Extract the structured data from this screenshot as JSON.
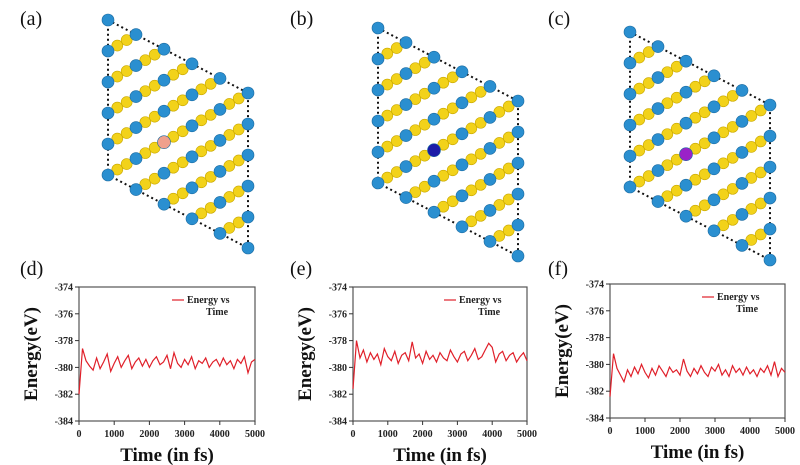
{
  "panel_labels": [
    "(a)",
    "(b)",
    "(c)",
    "(d)",
    "(e)",
    "(f)"
  ],
  "structures": [
    {
      "label": "(a)",
      "dopant_color": "#f0a08c"
    },
    {
      "label": "(b)",
      "dopant_color": "#1c1ca8"
    },
    {
      "label": "(c)",
      "dopant_color": "#9a22c8"
    }
  ],
  "colors": {
    "metal": "#2a8fd0",
    "sulfur": "#f2d21a",
    "line": "#e0202a"
  },
  "chart_data": [
    {
      "type": "line",
      "label": "(d)",
      "xlabel": "Time (in fs)",
      "ylabel": "Energy(eV)",
      "xlim": [
        0,
        5000
      ],
      "ylim": [
        -384,
        -374
      ],
      "xticks": [
        "0",
        "1000",
        "2000",
        "3000",
        "4000",
        "5000"
      ],
      "yticks": [
        "-374",
        "-376",
        "-378",
        "-380",
        "-382",
        "-384"
      ],
      "legend": [
        "Energy vs",
        "Time"
      ],
      "legend_position": "top-right",
      "series": [
        {
          "name": "Energy vs Time",
          "values": [
            -382.0,
            -378.6,
            -379.5,
            -379.9,
            -380.2,
            -379.3,
            -380.1,
            -379.6,
            -379.0,
            -380.3,
            -379.7,
            -379.2,
            -380.0,
            -379.5,
            -379.1,
            -380.1,
            -379.6,
            -379.3,
            -379.9,
            -379.4,
            -380.0,
            -379.5,
            -379.2,
            -379.8,
            -379.6,
            -379.1,
            -380.1,
            -378.9,
            -379.7,
            -380.0,
            -379.4,
            -379.8,
            -379.2,
            -380.1,
            -379.5,
            -379.7,
            -379.3,
            -380.0,
            -379.6,
            -379.4,
            -379.9,
            -379.3,
            -379.8,
            -379.5,
            -380.1,
            -379.4,
            -379.7,
            -379.2,
            -380.4,
            -379.6,
            -379.4
          ]
        }
      ]
    },
    {
      "type": "line",
      "label": "(e)",
      "xlabel": "Time (in fs)",
      "ylabel": "Energy(eV)",
      "xlim": [
        0,
        5000
      ],
      "ylim": [
        -384,
        -374
      ],
      "xticks": [
        "0",
        "1000",
        "2000",
        "3000",
        "4000",
        "5000"
      ],
      "yticks": [
        "-374",
        "-376",
        "-378",
        "-380",
        "-382",
        "-384"
      ],
      "legend": [
        "Energy vs",
        "Time"
      ],
      "legend_position": "top-right",
      "series": [
        {
          "name": "Energy vs Time",
          "values": [
            -381.6,
            -378.0,
            -379.3,
            -378.7,
            -379.6,
            -378.9,
            -379.4,
            -379.0,
            -379.8,
            -378.6,
            -379.2,
            -379.5,
            -378.8,
            -379.7,
            -379.1,
            -378.9,
            -379.5,
            -378.1,
            -379.3,
            -379.0,
            -379.7,
            -378.8,
            -379.4,
            -379.1,
            -379.6,
            -378.9,
            -379.3,
            -379.5,
            -378.7,
            -379.2,
            -379.6,
            -379.0,
            -378.8,
            -379.5,
            -379.1,
            -378.6,
            -379.4,
            -379.2,
            -378.7,
            -378.2,
            -378.5,
            -379.6,
            -379.0,
            -378.8,
            -379.5,
            -379.1,
            -378.9,
            -379.6,
            -379.2,
            -378.9,
            -379.5
          ]
        }
      ]
    },
    {
      "type": "line",
      "label": "(f)",
      "xlabel": "Time (in fs)",
      "ylabel": "Energy(eV)",
      "xlim": [
        0,
        5000
      ],
      "ylim": [
        -384,
        -374
      ],
      "xticks": [
        "0",
        "1000",
        "2000",
        "3000",
        "4000",
        "5000"
      ],
      "yticks": [
        "-374",
        "-376",
        "-378",
        "-380",
        "-382",
        "-384"
      ],
      "legend": [
        "Energy vs",
        "Time"
      ],
      "legend_position": "top-right",
      "series": [
        {
          "name": "Energy vs Time",
          "values": [
            -382.4,
            -379.2,
            -380.3,
            -380.8,
            -381.3,
            -380.4,
            -380.9,
            -380.2,
            -380.7,
            -380.0,
            -380.6,
            -381.0,
            -380.3,
            -380.8,
            -380.1,
            -380.5,
            -380.9,
            -380.2,
            -380.6,
            -380.4,
            -380.8,
            -379.6,
            -380.5,
            -380.9,
            -380.3,
            -380.7,
            -380.1,
            -380.6,
            -380.9,
            -380.2,
            -380.5,
            -380.0,
            -380.8,
            -380.4,
            -380.9,
            -380.1,
            -380.6,
            -380.3,
            -380.8,
            -380.2,
            -380.7,
            -380.4,
            -380.9,
            -380.3,
            -380.6,
            -380.1,
            -380.8,
            -379.8,
            -380.9,
            -380.3,
            -380.6
          ]
        }
      ]
    }
  ]
}
